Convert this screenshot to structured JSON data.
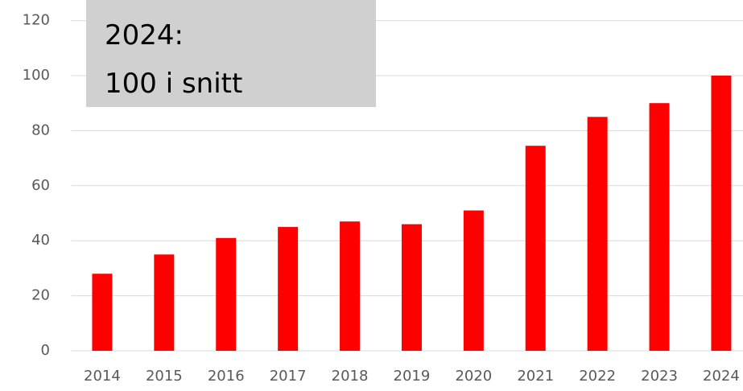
{
  "chart_data": {
    "type": "bar",
    "annotation": [
      "2024:",
      "100 i snitt"
    ],
    "categories": [
      "2014",
      "2015",
      "2016",
      "2017",
      "2018",
      "2019",
      "2020",
      "2021",
      "2022",
      "2023",
      "2024"
    ],
    "values": [
      28,
      35,
      41,
      45,
      47,
      46,
      51,
      74.5,
      85,
      90,
      100
    ],
    "color": "#ff0000",
    "ylim": [
      0,
      120
    ],
    "yticks": [
      0,
      20,
      40,
      60,
      80,
      100,
      120
    ],
    "grid": true
  }
}
